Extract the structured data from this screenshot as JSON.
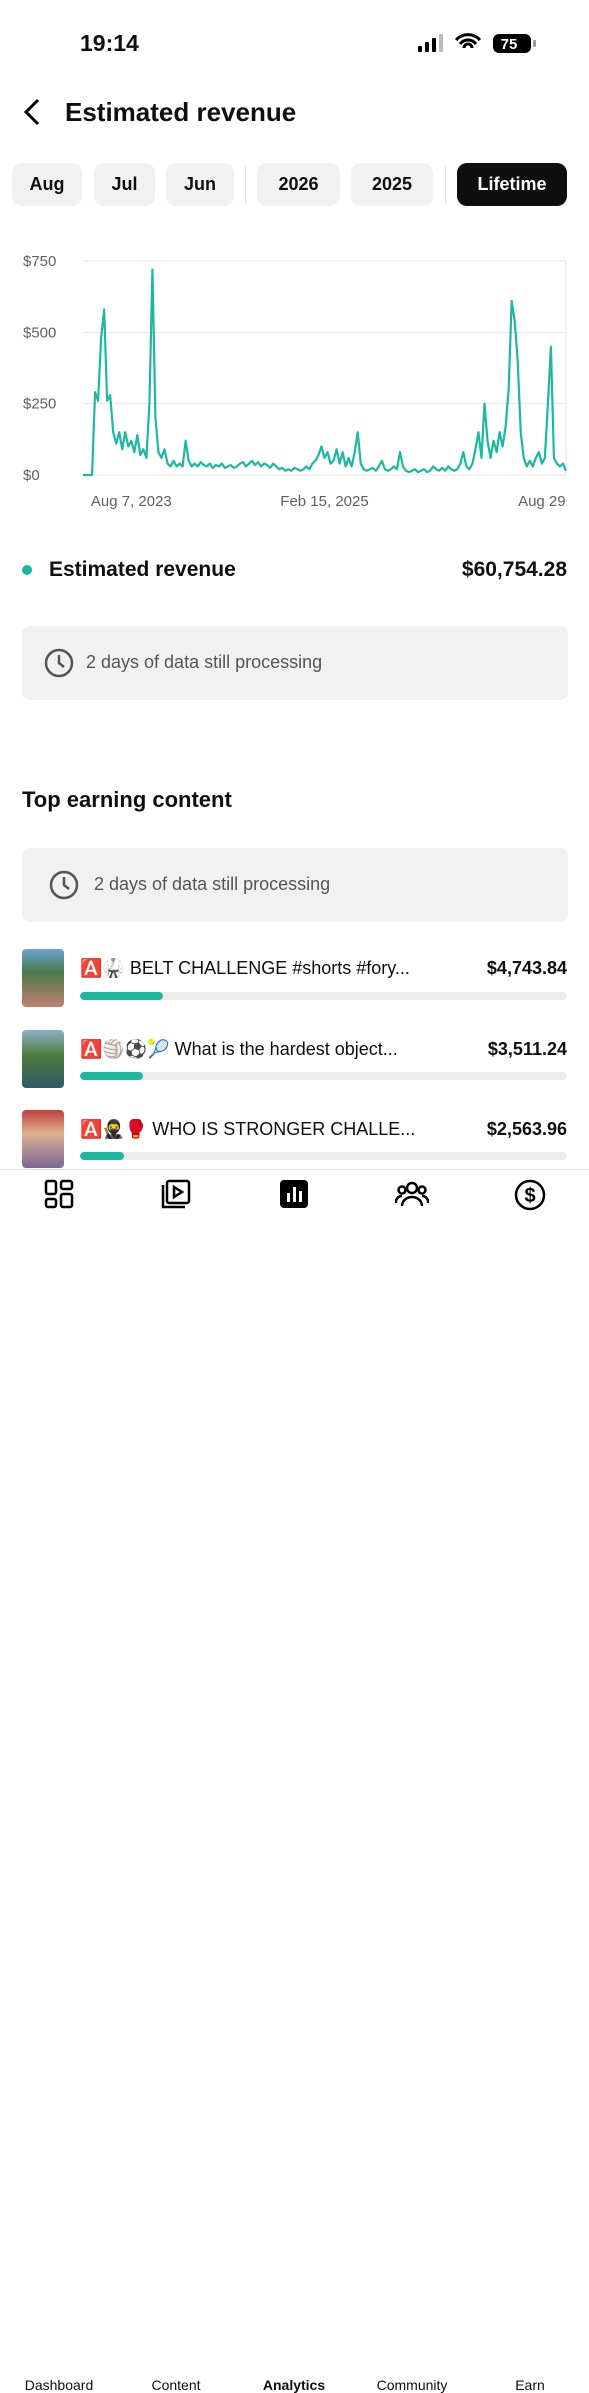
{
  "status_bar": {
    "time": "19:14",
    "battery": "75"
  },
  "header": {
    "title": "Estimated revenue"
  },
  "tabs": {
    "items": [
      "Aug",
      "Jul",
      "Jun",
      "2026",
      "2025",
      "Lifetime"
    ],
    "active": 5
  },
  "chart_data": {
    "type": "line",
    "color": "#1db8a0",
    "grid": true,
    "xlim": [
      0,
      160
    ],
    "xticks": [
      {
        "value": 16,
        "label": "Aug 7, 2023"
      },
      {
        "value": 80,
        "label": "Feb 15, 2025"
      },
      {
        "value": 152,
        "label": "Aug 29"
      }
    ],
    "ylim": [
      0,
      750
    ],
    "yticks": [
      {
        "value": 0,
        "label": "$0"
      },
      {
        "value": 250,
        "label": "$250"
      },
      {
        "value": 500,
        "label": "$500"
      },
      {
        "value": 750,
        "label": "$750"
      }
    ],
    "series": [
      {
        "name": "Estimated revenue",
        "total": "$60,754.28",
        "values": [
          0,
          0,
          0,
          0,
          290,
          260,
          480,
          580,
          260,
          280,
          150,
          110,
          150,
          90,
          150,
          100,
          120,
          80,
          140,
          70,
          90,
          60,
          250,
          720,
          200,
          80,
          60,
          90,
          40,
          30,
          50,
          30,
          40,
          30,
          120,
          50,
          30,
          40,
          30,
          45,
          35,
          30,
          40,
          25,
          35,
          30,
          40,
          25,
          30,
          35,
          25,
          30,
          40,
          45,
          30,
          40,
          50,
          35,
          45,
          30,
          40,
          35,
          25,
          40,
          30,
          20,
          25,
          15,
          20,
          15,
          25,
          20,
          15,
          20,
          30,
          20,
          40,
          50,
          70,
          100,
          60,
          80,
          40,
          50,
          90,
          40,
          80,
          30,
          60,
          30,
          80,
          150,
          40,
          20,
          15,
          20,
          25,
          15,
          30,
          50,
          20,
          15,
          20,
          30,
          20,
          80,
          30,
          15,
          10,
          15,
          20,
          10,
          15,
          20,
          10,
          15,
          30,
          20,
          15,
          25,
          15,
          30,
          20,
          15,
          20,
          40,
          80,
          30,
          20,
          40,
          90,
          150,
          60,
          250,
          120,
          60,
          120,
          80,
          150,
          100,
          170,
          300,
          610,
          540,
          400,
          150,
          60,
          30,
          50,
          30,
          60,
          80,
          40,
          60,
          250,
          450,
          60,
          40,
          30,
          40,
          15
        ]
      }
    ]
  },
  "notice": {
    "text": "2 days of data still processing"
  },
  "top_content": {
    "title": "Top earning content",
    "notice": "2 days of data still processing",
    "items": [
      {
        "title": "🅰️🥋 BELT CHALLENGE #shorts #fory...",
        "amount": "$4,743.84",
        "bar_share": 17
      },
      {
        "title": "🅰️🏐⚽🎾 What is the hardest object...",
        "amount": "$3,511.24",
        "bar_share": 13
      },
      {
        "title": "🅰️🥷🥊 WHO IS STRONGER CHALLE...",
        "amount": "$2,563.96",
        "bar_share": 9
      }
    ]
  },
  "nav": {
    "items": [
      "Dashboard",
      "Content",
      "Analytics",
      "Community",
      "Earn"
    ],
    "active": 2
  }
}
